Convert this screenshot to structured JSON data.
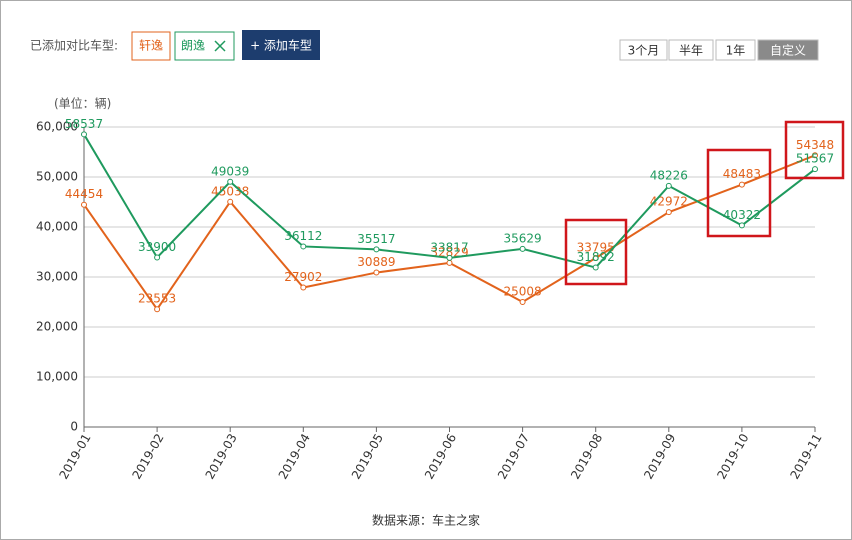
{
  "header": {
    "compare_label": "已添加对比车型:",
    "add_button": "+ 添加车型",
    "periods": [
      "3个月",
      "半年",
      "1年",
      "自定义"
    ],
    "selected_period": 3
  },
  "chart_data": {
    "type": "line",
    "unit_label": "(单位：辆)",
    "source": "数据来源：车主之家",
    "categories": [
      "2019-01",
      "2019-02",
      "2019-03",
      "2019-04",
      "2019-05",
      "2019-06",
      "2019-07",
      "2019-08",
      "2019-09",
      "2019-10",
      "2019-11"
    ],
    "series": [
      {
        "name": "轩逸",
        "color": "#e2631c",
        "values": [
          44454,
          23553,
          45038,
          27902,
          30889,
          32829,
          25008,
          33795,
          42972,
          48483,
          54348
        ]
      },
      {
        "name": "朗逸",
        "color": "#1f9a5e",
        "values": [
          58537,
          33900,
          49039,
          36112,
          35517,
          33817,
          35629,
          31892,
          48226,
          40322,
          51567
        ]
      }
    ],
    "ylim": [
      0,
      60000
    ],
    "yticks": [
      0,
      {
        "value": 10000,
        "label": "10,000"
      },
      {
        "value": 20000,
        "label": "20,000"
      },
      {
        "value": 30000,
        "label": "30,000"
      },
      {
        "value": 40000,
        "label": "40,000"
      },
      {
        "value": 50000,
        "label": "50,000"
      },
      {
        "value": 60000,
        "label": "60,000"
      }
    ],
    "grid": true
  }
}
